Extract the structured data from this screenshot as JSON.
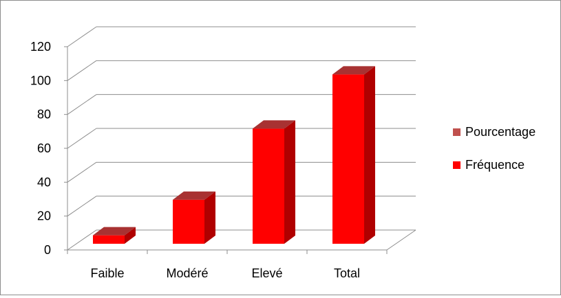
{
  "chart_data": {
    "type": "bar",
    "title": "",
    "xlabel": "",
    "ylabel": "",
    "categories": [
      "Faible",
      "Modéré",
      "Elevé",
      "Total"
    ],
    "ylim": [
      0,
      120
    ],
    "yticks": [
      "0",
      "20",
      "40",
      "60",
      "80",
      "100",
      "120"
    ],
    "grid": true,
    "three_d": true,
    "legend_position": "right",
    "series": [
      {
        "name": "Fréquence",
        "values": [
          5,
          26,
          68,
          100
        ],
        "color": "#ff0000",
        "side_color": "#b00000",
        "top_color": "#a83232"
      },
      {
        "name": "Pourcentage",
        "values": [
          0,
          0,
          0,
          0
        ],
        "color": "#c0504d"
      }
    ]
  }
}
